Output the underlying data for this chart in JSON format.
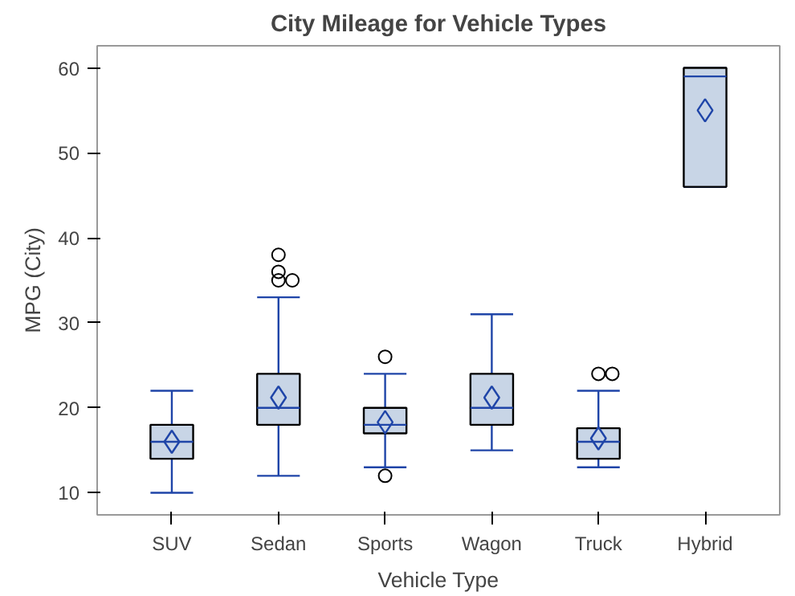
{
  "chart_data": {
    "type": "box",
    "title": "City Mileage for Vehicle Types",
    "xlabel": "Vehicle Type",
    "ylabel": "MPG (City)",
    "categories": [
      "SUV",
      "Sedan",
      "Sports",
      "Wagon",
      "Truck",
      "Hybrid"
    ],
    "ylim": [
      7.4,
      62.6
    ],
    "yticks": [
      10,
      20,
      30,
      40,
      50,
      60
    ],
    "series": [
      {
        "color": "#c8d5e6",
        "boxes": [
          {
            "low": 10,
            "q1": 14,
            "median": 16,
            "q3": 18,
            "high": 22,
            "mean": 16
          },
          {
            "low": 12,
            "q1": 18,
            "median": 20,
            "q3": 24,
            "high": 33,
            "mean": 21.2,
            "outliers": [
              38,
              36,
              35,
              35
            ]
          },
          {
            "low": 13,
            "q1": 17,
            "median": 18,
            "q3": 20,
            "high": 24,
            "mean": 18.3,
            "outliers": [
              26,
              12
            ]
          },
          {
            "low": 15,
            "q1": 18,
            "median": 20,
            "q3": 24,
            "high": 31,
            "mean": 21.2
          },
          {
            "low": 13,
            "q1": 14,
            "median": 16,
            "q3": 17.6,
            "high": 22,
            "mean": 16.4,
            "outliers": [
              24,
              24
            ]
          },
          {
            "low": 46,
            "q1": 46,
            "median": 59,
            "q3": 60,
            "high": 60,
            "mean": 55
          }
        ]
      }
    ]
  }
}
